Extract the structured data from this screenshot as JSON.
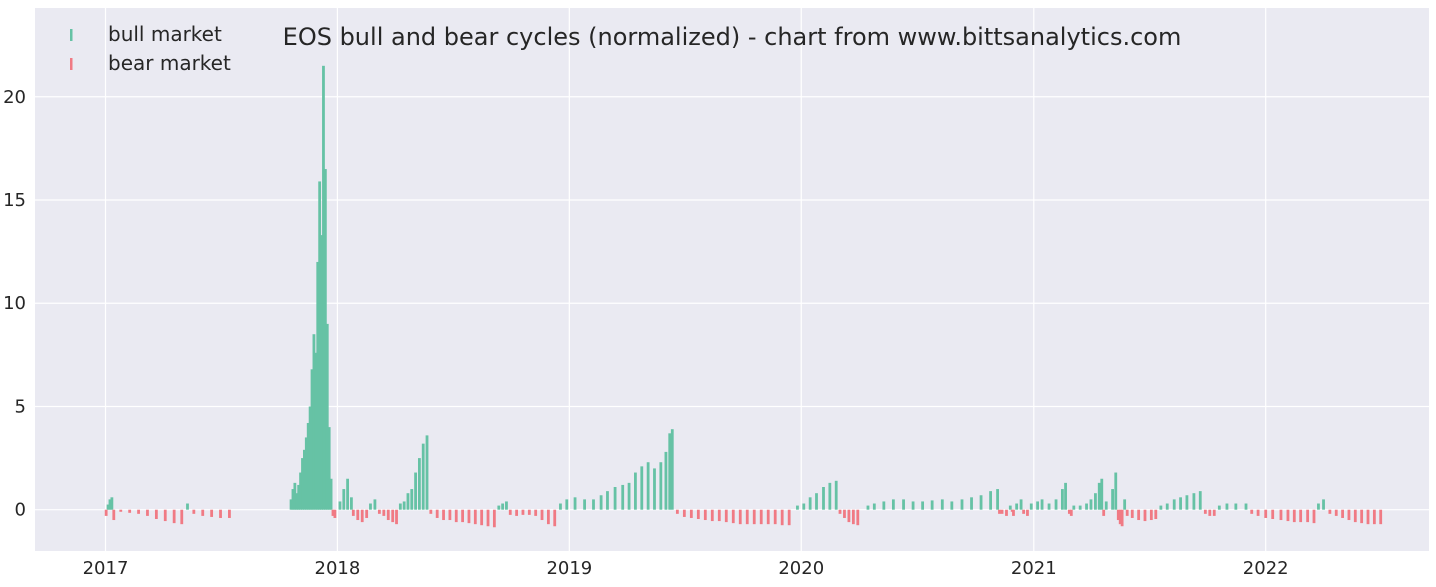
{
  "chart_data": {
    "type": "bar",
    "title": "EOS bull and bear cycles (normalized)  - chart from www.bittsanalytics.com",
    "xlabel": "",
    "ylabel": "",
    "xlim": [
      "2016-09-12",
      "2022-09-15"
    ],
    "ylim": [
      -2,
      24.3
    ],
    "grid": true,
    "legend_position": "top-left",
    "x_ticks": [
      "2017",
      "2018",
      "2019",
      "2020",
      "2021",
      "2022"
    ],
    "y_ticks": [
      "0",
      "5",
      "10",
      "15",
      "20"
    ],
    "colors": {
      "background": "#eaeaf2",
      "grid": "#ffffff",
      "bull": "#66c2a5",
      "bear": "#f07a84"
    },
    "series": [
      {
        "name": "bull market",
        "values": [
          [
            "2017-01-05",
            0.25
          ],
          [
            "2017-01-08",
            0.5
          ],
          [
            "2017-01-11",
            0.6
          ],
          [
            "2017-05-10",
            0.3
          ],
          [
            "2017-10-20",
            0.5
          ],
          [
            "2017-10-23",
            1.0
          ],
          [
            "2017-10-26",
            1.3
          ],
          [
            "2017-10-29",
            0.8
          ],
          [
            "2017-11-01",
            1.2
          ],
          [
            "2017-11-04",
            1.8
          ],
          [
            "2017-11-07",
            2.5
          ],
          [
            "2017-11-10",
            2.9
          ],
          [
            "2017-11-13",
            3.5
          ],
          [
            "2017-11-16",
            4.2
          ],
          [
            "2017-11-19",
            5.0
          ],
          [
            "2017-11-22",
            6.8
          ],
          [
            "2017-11-25",
            8.5
          ],
          [
            "2017-11-28",
            7.6
          ],
          [
            "2017-12-01",
            12.0
          ],
          [
            "2017-12-04",
            15.9
          ],
          [
            "2017-12-07",
            13.3
          ],
          [
            "2017-12-10",
            21.5
          ],
          [
            "2017-12-13",
            16.5
          ],
          [
            "2017-12-16",
            9.0
          ],
          [
            "2017-12-19",
            4.0
          ],
          [
            "2017-12-22",
            1.5
          ],
          [
            "2018-01-05",
            0.4
          ],
          [
            "2018-01-11",
            1.0
          ],
          [
            "2018-01-17",
            1.5
          ],
          [
            "2018-01-23",
            0.6
          ],
          [
            "2018-02-22",
            0.3
          ],
          [
            "2018-03-01",
            0.5
          ],
          [
            "2018-04-10",
            0.3
          ],
          [
            "2018-04-16",
            0.4
          ],
          [
            "2018-04-22",
            0.8
          ],
          [
            "2018-04-28",
            1.0
          ],
          [
            "2018-05-04",
            1.8
          ],
          [
            "2018-05-10",
            2.5
          ],
          [
            "2018-05-16",
            3.2
          ],
          [
            "2018-05-22",
            3.6
          ],
          [
            "2018-09-12",
            0.2
          ],
          [
            "2018-09-18",
            0.3
          ],
          [
            "2018-09-24",
            0.4
          ],
          [
            "2018-12-18",
            0.3
          ],
          [
            "2018-12-28",
            0.5
          ],
          [
            "2019-01-10",
            0.6
          ],
          [
            "2019-01-25",
            0.5
          ],
          [
            "2019-02-08",
            0.5
          ],
          [
            "2019-02-20",
            0.7
          ],
          [
            "2019-03-02",
            0.9
          ],
          [
            "2019-03-14",
            1.1
          ],
          [
            "2019-03-26",
            1.2
          ],
          [
            "2019-04-05",
            1.3
          ],
          [
            "2019-04-15",
            1.8
          ],
          [
            "2019-04-25",
            2.1
          ],
          [
            "2019-05-05",
            2.3
          ],
          [
            "2019-05-15",
            2.0
          ],
          [
            "2019-05-25",
            2.3
          ],
          [
            "2019-06-02",
            2.8
          ],
          [
            "2019-06-08",
            3.7
          ],
          [
            "2019-06-12",
            3.9
          ],
          [
            "2019-12-26",
            0.2
          ],
          [
            "2020-01-05",
            0.3
          ],
          [
            "2020-01-15",
            0.6
          ],
          [
            "2020-01-25",
            0.8
          ],
          [
            "2020-02-05",
            1.1
          ],
          [
            "2020-02-15",
            1.3
          ],
          [
            "2020-02-25",
            1.4
          ],
          [
            "2020-04-15",
            0.2
          ],
          [
            "2020-04-25",
            0.3
          ],
          [
            "2020-05-10",
            0.4
          ],
          [
            "2020-05-25",
            0.5
          ],
          [
            "2020-06-10",
            0.5
          ],
          [
            "2020-06-25",
            0.4
          ],
          [
            "2020-07-10",
            0.4
          ],
          [
            "2020-07-25",
            0.45
          ],
          [
            "2020-08-10",
            0.5
          ],
          [
            "2020-08-25",
            0.4
          ],
          [
            "2020-09-10",
            0.5
          ],
          [
            "2020-09-25",
            0.6
          ],
          [
            "2020-10-10",
            0.7
          ],
          [
            "2020-10-25",
            0.9
          ],
          [
            "2020-11-05",
            1.0
          ],
          [
            "2020-11-25",
            0.2
          ],
          [
            "2020-12-05",
            0.3
          ],
          [
            "2020-12-12",
            0.5
          ],
          [
            "2020-12-28",
            0.3
          ],
          [
            "2021-01-07",
            0.4
          ],
          [
            "2021-01-14",
            0.5
          ],
          [
            "2021-01-25",
            0.3
          ],
          [
            "2021-02-05",
            0.5
          ],
          [
            "2021-02-15",
            1.0
          ],
          [
            "2021-02-20",
            1.3
          ],
          [
            "2021-03-05",
            0.2
          ],
          [
            "2021-03-15",
            0.2
          ],
          [
            "2021-03-25",
            0.3
          ],
          [
            "2021-04-01",
            0.5
          ],
          [
            "2021-04-08",
            0.8
          ],
          [
            "2021-04-14",
            1.3
          ],
          [
            "2021-04-18",
            1.5
          ],
          [
            "2021-04-25",
            0.4
          ],
          [
            "2021-05-05",
            1.0
          ],
          [
            "2021-05-10",
            1.8
          ],
          [
            "2021-05-24",
            0.5
          ],
          [
            "2021-07-20",
            0.2
          ],
          [
            "2021-07-30",
            0.3
          ],
          [
            "2021-08-10",
            0.5
          ],
          [
            "2021-08-20",
            0.6
          ],
          [
            "2021-08-30",
            0.7
          ],
          [
            "2021-09-10",
            0.8
          ],
          [
            "2021-09-20",
            0.9
          ],
          [
            "2021-10-20",
            0.2
          ],
          [
            "2021-11-01",
            0.3
          ],
          [
            "2021-11-15",
            0.3
          ],
          [
            "2021-12-01",
            0.3
          ],
          [
            "2022-03-25",
            0.3
          ],
          [
            "2022-04-02",
            0.5
          ]
        ]
      },
      {
        "name": "bear market",
        "values": [
          [
            "2017-01-02",
            -0.3
          ],
          [
            "2017-01-14",
            -0.5
          ],
          [
            "2017-01-25",
            -0.1
          ],
          [
            "2017-02-08",
            -0.15
          ],
          [
            "2017-02-22",
            -0.2
          ],
          [
            "2017-03-08",
            -0.3
          ],
          [
            "2017-03-22",
            -0.45
          ],
          [
            "2017-04-05",
            -0.55
          ],
          [
            "2017-04-19",
            -0.65
          ],
          [
            "2017-05-01",
            -0.7
          ],
          [
            "2017-05-20",
            -0.2
          ],
          [
            "2017-06-03",
            -0.3
          ],
          [
            "2017-06-17",
            -0.35
          ],
          [
            "2017-07-01",
            -0.4
          ],
          [
            "2017-07-15",
            -0.4
          ],
          [
            "2017-12-25",
            -0.3
          ],
          [
            "2017-12-28",
            -0.4
          ],
          [
            "2018-01-26",
            -0.3
          ],
          [
            "2018-02-02",
            -0.5
          ],
          [
            "2018-02-09",
            -0.6
          ],
          [
            "2018-02-16",
            -0.4
          ],
          [
            "2018-03-08",
            -0.2
          ],
          [
            "2018-03-15",
            -0.3
          ],
          [
            "2018-03-22",
            -0.5
          ],
          [
            "2018-03-29",
            -0.6
          ],
          [
            "2018-04-04",
            -0.7
          ],
          [
            "2018-05-28",
            -0.2
          ],
          [
            "2018-06-07",
            -0.4
          ],
          [
            "2018-06-17",
            -0.5
          ],
          [
            "2018-06-27",
            -0.5
          ],
          [
            "2018-07-07",
            -0.6
          ],
          [
            "2018-07-17",
            -0.6
          ],
          [
            "2018-07-27",
            -0.65
          ],
          [
            "2018-08-06",
            -0.7
          ],
          [
            "2018-08-16",
            -0.75
          ],
          [
            "2018-08-26",
            -0.8
          ],
          [
            "2018-09-05",
            -0.85
          ],
          [
            "2018-09-30",
            -0.25
          ],
          [
            "2018-10-10",
            -0.3
          ],
          [
            "2018-10-20",
            -0.25
          ],
          [
            "2018-10-30",
            -0.25
          ],
          [
            "2018-11-09",
            -0.3
          ],
          [
            "2018-11-19",
            -0.5
          ],
          [
            "2018-11-29",
            -0.7
          ],
          [
            "2018-12-09",
            -0.8
          ],
          [
            "2019-06-20",
            -0.2
          ],
          [
            "2019-07-01",
            -0.35
          ],
          [
            "2019-07-12",
            -0.4
          ],
          [
            "2019-07-23",
            -0.45
          ],
          [
            "2019-08-03",
            -0.5
          ],
          [
            "2019-08-14",
            -0.55
          ],
          [
            "2019-08-25",
            -0.55
          ],
          [
            "2019-09-05",
            -0.6
          ],
          [
            "2019-09-16",
            -0.65
          ],
          [
            "2019-09-27",
            -0.7
          ],
          [
            "2019-10-08",
            -0.7
          ],
          [
            "2019-10-19",
            -0.7
          ],
          [
            "2019-10-30",
            -0.7
          ],
          [
            "2019-11-10",
            -0.7
          ],
          [
            "2019-11-21",
            -0.7
          ],
          [
            "2019-12-02",
            -0.75
          ],
          [
            "2019-12-13",
            -0.75
          ],
          [
            "2020-03-02",
            -0.2
          ],
          [
            "2020-03-09",
            -0.4
          ],
          [
            "2020-03-16",
            -0.6
          ],
          [
            "2020-03-23",
            -0.7
          ],
          [
            "2020-03-30",
            -0.75
          ],
          [
            "2020-11-12",
            -0.2
          ],
          [
            "2020-11-19",
            -0.3
          ],
          [
            "2020-11-28",
            -0.1
          ],
          [
            "2020-08-20",
            -0.0
          ],
          [
            "2020-11-08",
            -0.2
          ],
          [
            "2020-11-30",
            -0.3
          ],
          [
            "2020-12-16",
            -0.2
          ],
          [
            "2020-12-22",
            -0.3
          ],
          [
            "2021-02-26",
            -0.2
          ],
          [
            "2021-03-01",
            -0.3
          ],
          [
            "2021-04-21",
            -0.3
          ],
          [
            "2021-05-14",
            -0.5
          ],
          [
            "2021-05-17",
            -0.7
          ],
          [
            "2021-05-20",
            -0.8
          ],
          [
            "2021-05-28",
            -0.3
          ],
          [
            "2021-06-05",
            -0.4
          ],
          [
            "2021-06-15",
            -0.5
          ],
          [
            "2021-06-25",
            -0.55
          ],
          [
            "2021-07-05",
            -0.5
          ],
          [
            "2021-07-12",
            -0.45
          ],
          [
            "2021-09-28",
            -0.2
          ],
          [
            "2021-10-05",
            -0.3
          ],
          [
            "2021-10-12",
            -0.3
          ],
          [
            "2021-12-10",
            -0.2
          ],
          [
            "2021-12-20",
            -0.3
          ],
          [
            "2022-01-01",
            -0.4
          ],
          [
            "2022-01-12",
            -0.45
          ],
          [
            "2022-01-25",
            -0.5
          ],
          [
            "2022-02-05",
            -0.55
          ],
          [
            "2022-02-15",
            -0.6
          ],
          [
            "2022-02-25",
            -0.6
          ],
          [
            "2022-03-08",
            -0.6
          ],
          [
            "2022-03-18",
            -0.65
          ],
          [
            "2022-04-12",
            -0.2
          ],
          [
            "2022-04-22",
            -0.3
          ],
          [
            "2022-05-02",
            -0.4
          ],
          [
            "2022-05-12",
            -0.5
          ],
          [
            "2022-05-22",
            -0.6
          ],
          [
            "2022-06-01",
            -0.65
          ],
          [
            "2022-06-11",
            -0.7
          ],
          [
            "2022-06-21",
            -0.7
          ],
          [
            "2022-07-01",
            -0.7
          ]
        ]
      }
    ]
  }
}
